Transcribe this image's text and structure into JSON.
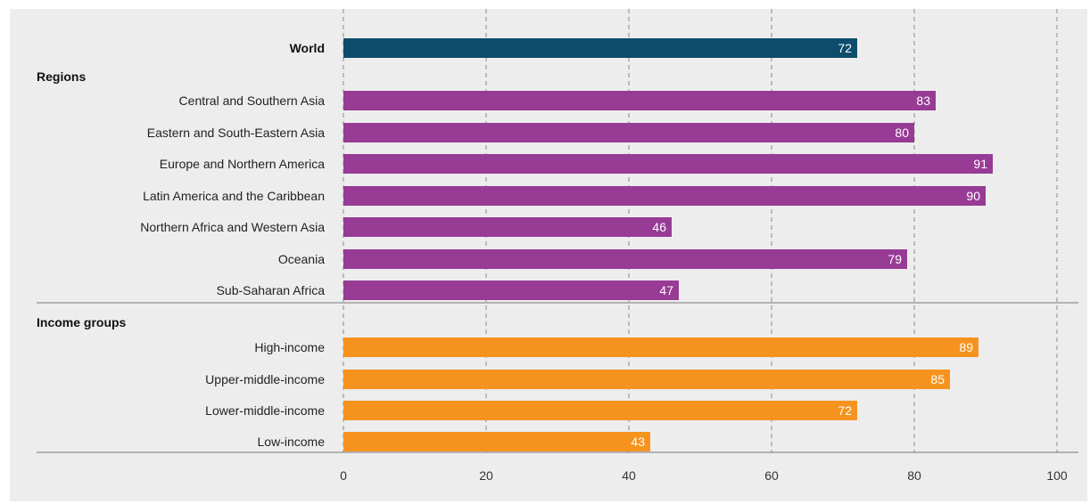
{
  "colors": {
    "world": "#0d4d6b",
    "regions": "#973b95",
    "income": "#f6931f",
    "grid": "#8a8a8a",
    "separator": "#777777",
    "background": "#ededee"
  },
  "chart_data": {
    "type": "bar",
    "orientation": "horizontal",
    "xlim": [
      0,
      100
    ],
    "xticks": [
      "0",
      "20",
      "40",
      "60",
      "80",
      "100"
    ],
    "grid": "vertical dashed",
    "groups": [
      {
        "label": "",
        "color_key": "world",
        "bars": [
          {
            "category": "World",
            "value": 72,
            "bold": true
          }
        ]
      },
      {
        "label": "Regions",
        "color_key": "regions",
        "bars": [
          {
            "category": "Central and Southern Asia",
            "value": 83
          },
          {
            "category": "Eastern and South-Eastern Asia",
            "value": 80
          },
          {
            "category": "Europe and Northern America",
            "value": 91
          },
          {
            "category": "Latin America and the Caribbean",
            "value": 90
          },
          {
            "category": "Northern Africa and Western Asia",
            "value": 46
          },
          {
            "category": "Oceania",
            "value": 79
          },
          {
            "category": "Sub-Saharan Africa",
            "value": 47
          }
        ]
      },
      {
        "label": "Income groups",
        "color_key": "income",
        "bars": [
          {
            "category": "High-income",
            "value": 89
          },
          {
            "category": "Upper-middle-income",
            "value": 85
          },
          {
            "category": "Lower-middle-income",
            "value": 72
          },
          {
            "category": "Low-income",
            "value": 43
          }
        ]
      }
    ]
  }
}
